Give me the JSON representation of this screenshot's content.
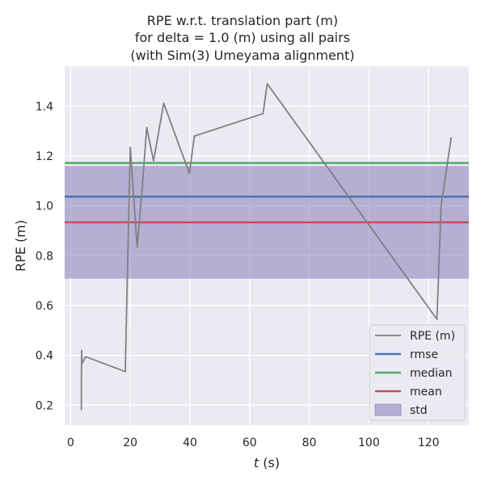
{
  "chart_data": {
    "type": "line",
    "title_lines": [
      "RPE w.r.t. translation part (m)",
      "for delta = 1.0 (m) using all pairs",
      "(with Sim(3) Umeyama alignment)"
    ],
    "xlabel_italic": "t",
    "xlabel_rest": " (s)",
    "ylabel": "RPE (m)",
    "xlim": [
      -2,
      133.5
    ],
    "ylim": [
      0.12,
      1.56
    ],
    "x_ticks": [
      0,
      20,
      40,
      60,
      80,
      100,
      120
    ],
    "y_ticks": [
      0.2,
      0.4,
      0.6,
      0.8,
      1.0,
      1.2,
      1.4
    ],
    "x_tick_labels": [
      "0",
      "20",
      "40",
      "60",
      "80",
      "100",
      "120"
    ],
    "y_tick_labels": [
      "0.2",
      "0.4",
      "0.6",
      "0.8",
      "1.0",
      "1.2",
      "1.4"
    ],
    "grid": true,
    "legend_position": "bottom-right",
    "series": [
      {
        "name": "RPE (m)",
        "color": "#808080",
        "points": [
          [
            3.6,
            0.18
          ],
          [
            3.6,
            0.29
          ],
          [
            3.7,
            0.42
          ],
          [
            3.8,
            0.38
          ],
          [
            4.0,
            0.37
          ],
          [
            5.0,
            0.395
          ],
          [
            18.3,
            0.335
          ],
          [
            20.0,
            1.235
          ],
          [
            20.2,
            1.2
          ],
          [
            22.3,
            0.835
          ],
          [
            24.0,
            1.07
          ],
          [
            25.5,
            1.315
          ],
          [
            27.8,
            1.18
          ],
          [
            31.2,
            1.412
          ],
          [
            39.8,
            1.13
          ],
          [
            41.5,
            1.28
          ],
          [
            64.5,
            1.37
          ],
          [
            65.9,
            1.49
          ],
          [
            122.8,
            0.545
          ],
          [
            124.2,
            1.0
          ],
          [
            127.6,
            1.275
          ]
        ]
      }
    ],
    "stats": {
      "rmse": 1.037,
      "median": 1.172,
      "mean": 0.934,
      "std_band": [
        0.708,
        1.16
      ]
    },
    "legend_items": [
      {
        "label": "RPE (m)",
        "kind": "line",
        "color": "#808080"
      },
      {
        "label": "rmse",
        "kind": "line",
        "color": "#4c72b0"
      },
      {
        "label": "median",
        "kind": "line",
        "color": "#55a868"
      },
      {
        "label": "mean",
        "kind": "line",
        "color": "#c44e52"
      },
      {
        "label": "std",
        "kind": "patch",
        "color": "#8172b3"
      }
    ],
    "colors": {
      "plot_background": "#eaeaf2",
      "grid": "#ffffff",
      "rmse": "#4c72b0",
      "median": "#55a868",
      "mean": "#c44e52",
      "std": "#8172b3"
    }
  }
}
